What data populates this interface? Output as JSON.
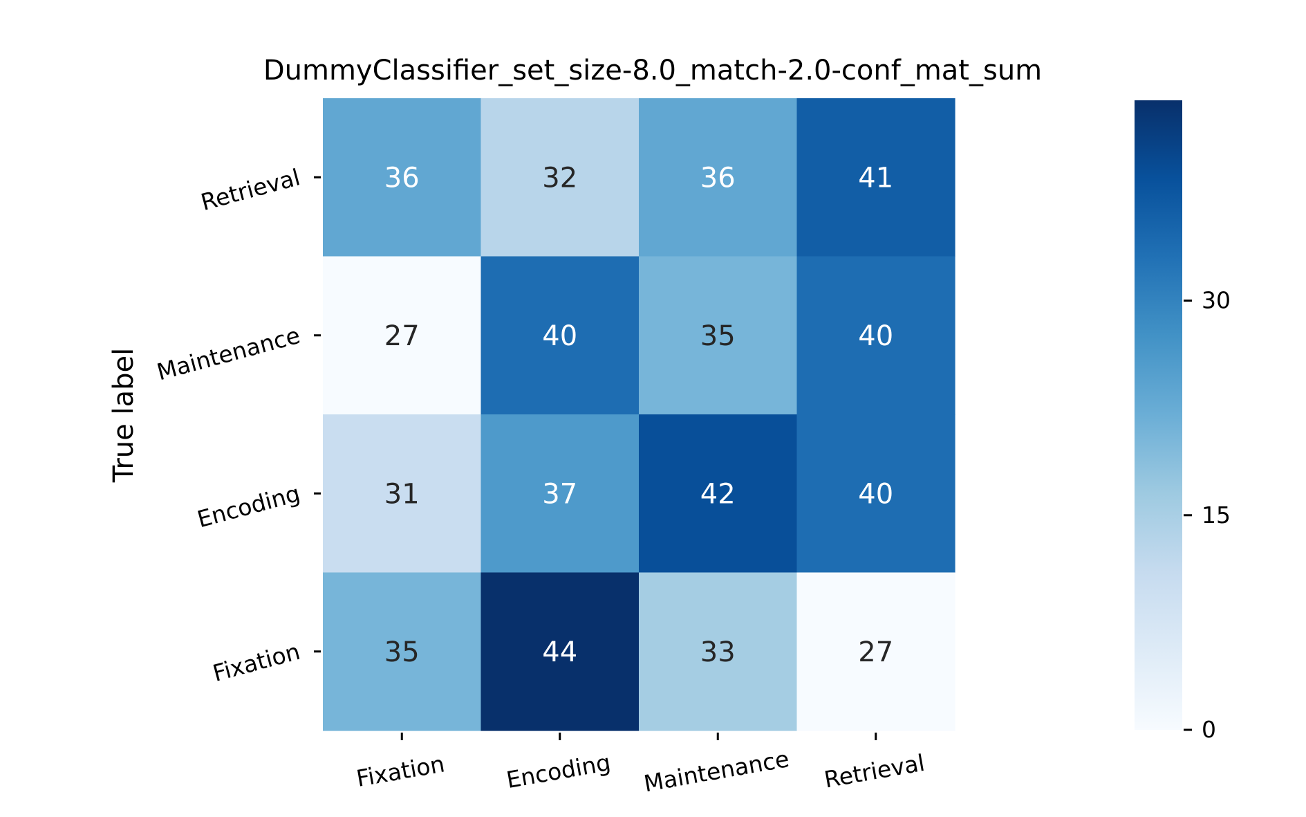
{
  "chart_data": {
    "type": "heatmap",
    "title": "DummyClassifier_set_size-8.0_match-2.0-conf_mat_sum",
    "xlabel": "",
    "ylabel": "True label",
    "x_categories": [
      "Fixation",
      "Encoding",
      "Maintenance",
      "Retrieval"
    ],
    "y_categories": [
      "Retrieval",
      "Maintenance",
      "Encoding",
      "Fixation"
    ],
    "values": [
      [
        36,
        32,
        36,
        41
      ],
      [
        27,
        40,
        35,
        40
      ],
      [
        31,
        37,
        42,
        40
      ],
      [
        35,
        44,
        33,
        27
      ]
    ],
    "colormap": "Blues",
    "vmin": 27,
    "vmax": 44,
    "colorbar": {
      "range": [
        0,
        44
      ],
      "ticks": [
        0,
        15,
        30
      ],
      "tick_labels": [
        "0",
        "15",
        "30"
      ]
    },
    "annotations": true,
    "grid": false
  }
}
